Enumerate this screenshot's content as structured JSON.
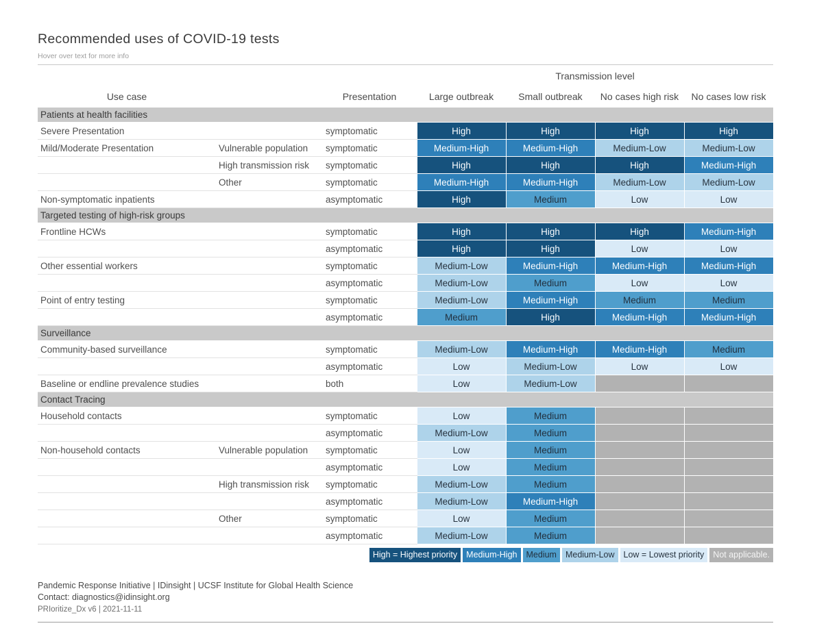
{
  "page": {
    "title": "Recommended uses of COVID-19 tests",
    "subtitle": "Hover over text for more info"
  },
  "chart_data": {
    "type": "heatmap",
    "title": "Recommended uses of COVID-19 tests",
    "group_header": "Transmission level",
    "columns": {
      "use_case": "Use case",
      "subcategory": "",
      "presentation": "Presentation",
      "levels": [
        "Large outbreak",
        "Small outbreak",
        "No cases high risk",
        "No cases low risk"
      ]
    },
    "scale_order": [
      "High",
      "Medium-High",
      "Medium",
      "Medium-Low",
      "Low",
      "N/A"
    ],
    "sections": [
      {
        "label": "Patients at health facilities",
        "rows": [
          {
            "use_case": "Severe Presentation",
            "subcategory": "",
            "presentation": "symptomatic",
            "values": [
              "High",
              "High",
              "High",
              "High"
            ]
          },
          {
            "use_case": "Mild/Moderate Presentation",
            "subcategory": "Vulnerable population",
            "presentation": "symptomatic",
            "values": [
              "Medium-High",
              "Medium-High",
              "Medium-Low",
              "Medium-Low"
            ]
          },
          {
            "use_case": "",
            "subcategory": "High transmission risk",
            "presentation": "symptomatic",
            "values": [
              "High",
              "High",
              "High",
              "Medium-High"
            ]
          },
          {
            "use_case": "",
            "subcategory": "Other",
            "presentation": "symptomatic",
            "values": [
              "Medium-High",
              "Medium-High",
              "Medium-Low",
              "Medium-Low"
            ]
          },
          {
            "use_case": "Non-symptomatic inpatients",
            "subcategory": "",
            "presentation": "asymptomatic",
            "values": [
              "High",
              "Medium",
              "Low",
              "Low"
            ]
          }
        ]
      },
      {
        "label": "Targeted testing of high-risk groups",
        "rows": [
          {
            "use_case": "Frontline HCWs",
            "subcategory": "",
            "presentation": "symptomatic",
            "values": [
              "High",
              "High",
              "High",
              "Medium-High"
            ]
          },
          {
            "use_case": "",
            "subcategory": "",
            "presentation": "asymptomatic",
            "values": [
              "High",
              "High",
              "Low",
              "Low"
            ]
          },
          {
            "use_case": "Other essential workers",
            "subcategory": "",
            "presentation": "symptomatic",
            "values": [
              "Medium-Low",
              "Medium-High",
              "Medium-High",
              "Medium-High"
            ]
          },
          {
            "use_case": "",
            "subcategory": "",
            "presentation": "asymptomatic",
            "values": [
              "Medium-Low",
              "Medium",
              "Low",
              "Low"
            ]
          },
          {
            "use_case": "Point of entry testing",
            "subcategory": "",
            "presentation": "symptomatic",
            "values": [
              "Medium-Low",
              "Medium-High",
              "Medium",
              "Medium"
            ]
          },
          {
            "use_case": "",
            "subcategory": "",
            "presentation": "asymptomatic",
            "values": [
              "Medium",
              "High",
              "Medium-High",
              "Medium-High"
            ]
          }
        ]
      },
      {
        "label": "Surveillance",
        "rows": [
          {
            "use_case": "Community-based surveillance",
            "subcategory": "",
            "presentation": "symptomatic",
            "values": [
              "Medium-Low",
              "Medium-High",
              "Medium-High",
              "Medium"
            ]
          },
          {
            "use_case": "",
            "subcategory": "",
            "presentation": "asymptomatic",
            "values": [
              "Low",
              "Medium-Low",
              "Low",
              "Low"
            ]
          },
          {
            "use_case": "Baseline or endline prevalence studies",
            "subcategory": "",
            "presentation": "both",
            "values": [
              "Low",
              "Medium-Low",
              "N/A",
              "N/A"
            ]
          }
        ]
      },
      {
        "label": "Contact Tracing",
        "rows": [
          {
            "use_case": "Household contacts",
            "subcategory": "",
            "presentation": "symptomatic",
            "values": [
              "Low",
              "Medium",
              "N/A",
              "N/A"
            ]
          },
          {
            "use_case": "",
            "subcategory": "",
            "presentation": "asymptomatic",
            "values": [
              "Medium-Low",
              "Medium",
              "N/A",
              "N/A"
            ]
          },
          {
            "use_case": "Non-household contacts",
            "subcategory": "Vulnerable population",
            "presentation": "symptomatic",
            "values": [
              "Low",
              "Medium",
              "N/A",
              "N/A"
            ]
          },
          {
            "use_case": "",
            "subcategory": "",
            "presentation": "asymptomatic",
            "values": [
              "Low",
              "Medium",
              "N/A",
              "N/A"
            ]
          },
          {
            "use_case": "",
            "subcategory": "High transmission risk",
            "presentation": "symptomatic",
            "values": [
              "Medium-Low",
              "Medium",
              "N/A",
              "N/A"
            ]
          },
          {
            "use_case": "",
            "subcategory": "",
            "presentation": "asymptomatic",
            "values": [
              "Medium-Low",
              "Medium-High",
              "N/A",
              "N/A"
            ]
          },
          {
            "use_case": "",
            "subcategory": "Other",
            "presentation": "symptomatic",
            "values": [
              "Low",
              "Medium",
              "N/A",
              "N/A"
            ]
          },
          {
            "use_case": "",
            "subcategory": "",
            "presentation": "asymptomatic",
            "values": [
              "Medium-Low",
              "Medium",
              "N/A",
              "N/A"
            ]
          }
        ]
      }
    ]
  },
  "legend": {
    "items": [
      {
        "label": "High = Highest priority",
        "level": "High"
      },
      {
        "label": "Medium-High",
        "level": "Medium-High"
      },
      {
        "label": "Medium",
        "level": "Medium"
      },
      {
        "label": "Medium-Low",
        "level": "Medium-Low"
      },
      {
        "label": "Low = Lowest priority",
        "level": "Low"
      },
      {
        "label": "Not applicable.",
        "level": "N/A"
      }
    ]
  },
  "footer": {
    "line1": "Pandemic Response Initiative | IDinsight | UCSF Institute for Global Health Science",
    "line2": "Contact: diagnostics@idinsight.org",
    "line3": "PRIoritize_Dx v6 | 2021-11-11"
  },
  "colors": {
    "high": "#16527d",
    "medium_high": "#2e80b9",
    "medium": "#4f9ecc",
    "medium_low": "#aed3ea",
    "low": "#d9eaf7",
    "na": "#b2b2b2",
    "section_bg": "#c9c9c9"
  }
}
